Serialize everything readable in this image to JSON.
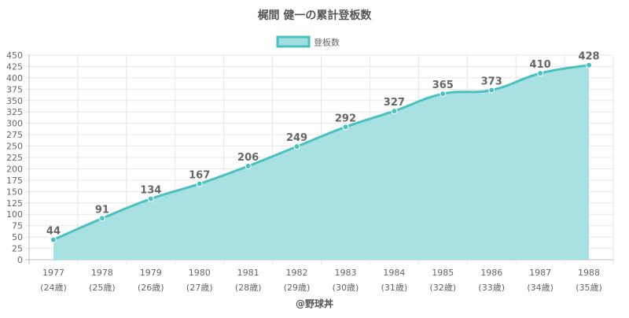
{
  "chart_data": {
    "type": "area",
    "title": "梶間 健一の累計登板数",
    "credit": "@野球丼",
    "legend_position": "top-center",
    "grid": true,
    "ylim": [
      0,
      450
    ],
    "y_ticks": [
      0,
      25,
      50,
      75,
      100,
      125,
      150,
      175,
      200,
      225,
      250,
      275,
      300,
      325,
      350,
      375,
      400,
      425,
      450
    ],
    "categories": [
      "1977",
      "1978",
      "1979",
      "1980",
      "1981",
      "1982",
      "1983",
      "1984",
      "1985",
      "1986",
      "1987",
      "1988"
    ],
    "category_sublabels": [
      "(24歳)",
      "(25歳)",
      "(26歳)",
      "(27歳)",
      "(28歳)",
      "(29歳)",
      "(30歳)",
      "(31歳)",
      "(32歳)",
      "(33歳)",
      "(34歳)",
      "(35歳)"
    ],
    "series": [
      {
        "name": "登板数",
        "values": [
          44,
          91,
          134,
          167,
          206,
          249,
          292,
          327,
          365,
          373,
          410,
          428
        ],
        "line_color": "#4bc0c0",
        "fill_color": "#a3dfdf"
      }
    ]
  }
}
